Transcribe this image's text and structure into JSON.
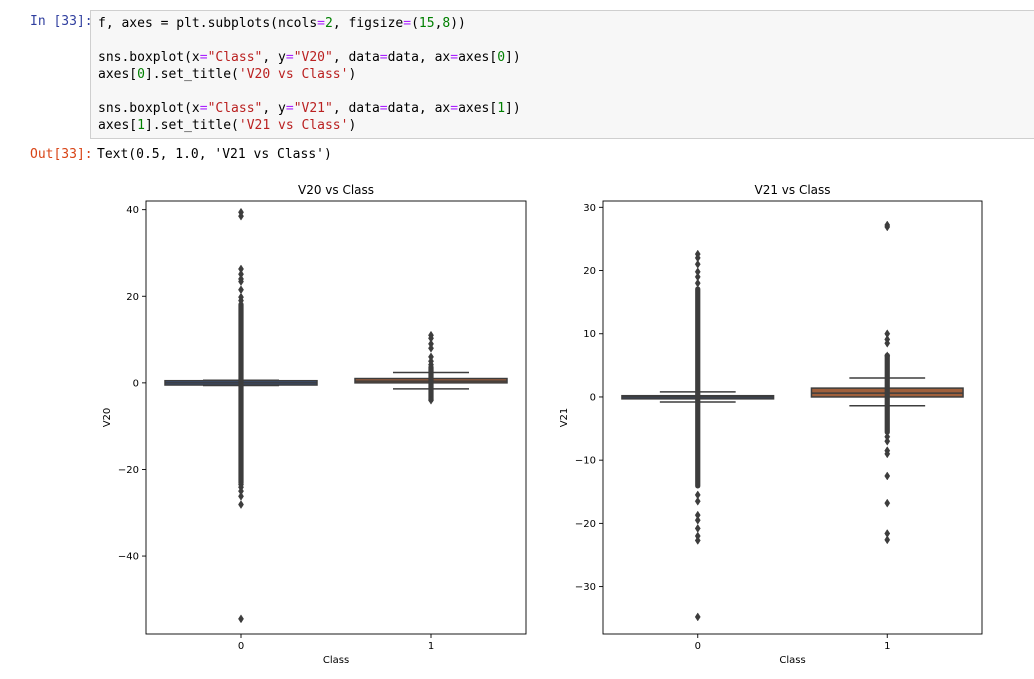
{
  "cell": {
    "in_prompt": "In [33]:",
    "out_prompt": "Out[33]:",
    "code_lines": [
      [
        {
          "t": "f, axes = plt.subplots(ncols"
        },
        {
          "t": "=",
          "c": "op"
        },
        {
          "t": "2",
          "c": "num"
        },
        {
          "t": ", figsize"
        },
        {
          "t": "=",
          "c": "op"
        },
        {
          "t": "("
        },
        {
          "t": "15",
          "c": "num"
        },
        {
          "t": ","
        },
        {
          "t": "8",
          "c": "num"
        },
        {
          "t": "))"
        }
      ],
      [],
      [
        {
          "t": "sns.boxplot(x"
        },
        {
          "t": "=",
          "c": "op"
        },
        {
          "t": "\"Class\"",
          "c": "str"
        },
        {
          "t": ", y"
        },
        {
          "t": "=",
          "c": "op"
        },
        {
          "t": "\"V20\"",
          "c": "str"
        },
        {
          "t": ", data"
        },
        {
          "t": "=",
          "c": "op"
        },
        {
          "t": "data, ax"
        },
        {
          "t": "=",
          "c": "op"
        },
        {
          "t": "axes["
        },
        {
          "t": "0",
          "c": "num"
        },
        {
          "t": "])"
        }
      ],
      [
        {
          "t": "axes["
        },
        {
          "t": "0",
          "c": "num"
        },
        {
          "t": "].set_title("
        },
        {
          "t": "'V20 vs Class'",
          "c": "str"
        },
        {
          "t": ")"
        }
      ],
      [],
      [
        {
          "t": "sns.boxplot(x"
        },
        {
          "t": "=",
          "c": "op"
        },
        {
          "t": "\"Class\"",
          "c": "str"
        },
        {
          "t": ", y"
        },
        {
          "t": "=",
          "c": "op"
        },
        {
          "t": "\"V21\"",
          "c": "str"
        },
        {
          "t": ", data"
        },
        {
          "t": "=",
          "c": "op"
        },
        {
          "t": "data, ax"
        },
        {
          "t": "=",
          "c": "op"
        },
        {
          "t": "axes["
        },
        {
          "t": "1",
          "c": "num"
        },
        {
          "t": "])"
        }
      ],
      [
        {
          "t": "axes["
        },
        {
          "t": "1",
          "c": "num"
        },
        {
          "t": "].set_title("
        },
        {
          "t": "'V21 vs Class'",
          "c": "str"
        },
        {
          "t": ")"
        }
      ]
    ],
    "output_text": "Text(0.5, 1.0, 'V21 vs Class')"
  },
  "chart_data": [
    {
      "type": "box",
      "title": "V20 vs Class",
      "xlabel": "Class",
      "ylabel": "V20",
      "categories": [
        "0",
        "1"
      ],
      "ylim": [
        -58,
        42
      ],
      "yticks": [
        40,
        20,
        0,
        -20,
        -40
      ],
      "grid": false,
      "colors": [
        "#4c72b0",
        "#dd8452"
      ],
      "boxes": [
        {
          "category": "0",
          "q1": -0.5,
          "median": 0.0,
          "q3": 0.5,
          "whisker_low": -0.6,
          "whisker_high": 0.6,
          "outliers_dense_range": [
            -23,
            18
          ],
          "outliers": [
            39.4,
            38.5,
            26.3,
            25.1,
            24.0,
            23.4,
            21.5,
            19.8,
            19.0,
            -23.5,
            -24.1,
            -25.0,
            -26.2,
            -28.1,
            -54.5
          ]
        },
        {
          "category": "1",
          "q1": 0.0,
          "median": 0.4,
          "q3": 1.0,
          "whisker_low": -1.4,
          "whisker_high": 2.4,
          "outliers_dense_range": [
            -3.8,
            3.5
          ],
          "outliers": [
            11.0,
            10.3,
            9.0,
            8.0,
            6.0,
            5.0,
            4.2,
            -4.0
          ]
        }
      ]
    },
    {
      "type": "box",
      "title": "V21 vs Class",
      "xlabel": "Class",
      "ylabel": "V21",
      "categories": [
        "0",
        "1"
      ],
      "ylim": [
        -37.5,
        31
      ],
      "yticks": [
        30,
        20,
        10,
        0,
        -10,
        -20,
        -30
      ],
      "grid": false,
      "colors": [
        "#4c72b0",
        "#dd8452"
      ],
      "boxes": [
        {
          "category": "0",
          "q1": -0.3,
          "median": 0.0,
          "q3": 0.2,
          "whisker_low": -0.8,
          "whisker_high": 0.8,
          "outliers_dense_range": [
            -14,
            17
          ],
          "outliers": [
            22.6,
            22.0,
            21.0,
            19.8,
            19.0,
            18.0,
            -15.5,
            -16.5,
            -18.7,
            -19.5,
            -20.8,
            -22.0,
            -22.7,
            -34.8
          ]
        },
        {
          "category": "1",
          "q1": 0.0,
          "median": 0.6,
          "q3": 1.4,
          "whisker_low": -1.4,
          "whisker_high": 3.0,
          "outliers_dense_range": [
            -5.5,
            6.5
          ],
          "outliers": [
            27.2,
            26.9,
            10.0,
            9.1,
            8.5,
            6.5,
            -6.3,
            -7.0,
            -8.5,
            -9.0,
            -12.5,
            -16.8,
            -21.6,
            -22.6
          ]
        }
      ]
    }
  ]
}
